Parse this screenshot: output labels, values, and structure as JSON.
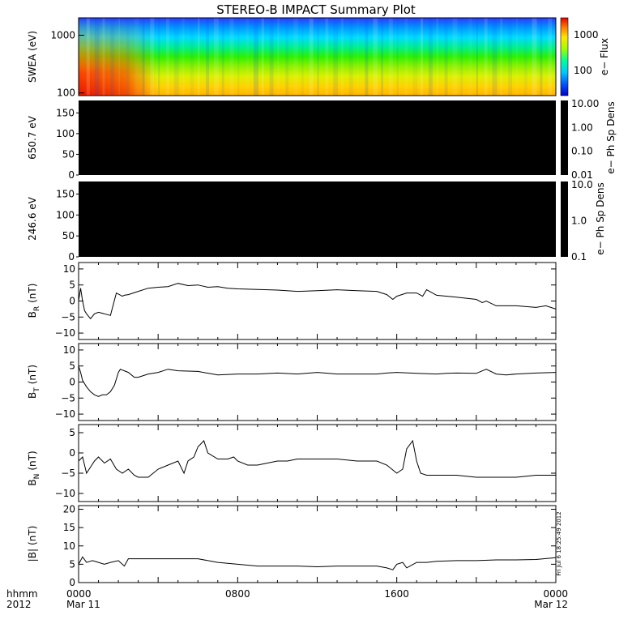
{
  "chart_data": {
    "type": "line",
    "title": "STEREO-B IMPACT Summary Plot",
    "x_axis": {
      "row1_label": "hhmm",
      "row2_label": "2012",
      "ticks": [
        {
          "t": 0,
          "label": "0000",
          "date": "Mar 11"
        },
        {
          "t": 8,
          "label": "0800",
          "date": ""
        },
        {
          "t": 16,
          "label": "1600",
          "date": ""
        },
        {
          "t": 24,
          "label": "0000",
          "date": "Mar 12"
        }
      ],
      "range_hours": [
        0,
        24
      ]
    },
    "timestamp_label": "Fri Jul 6 18:25:49 2012",
    "panels": [
      {
        "id": "swea",
        "type": "heatmap",
        "ylabel": "SWEA (eV)",
        "yscale": "log",
        "ylim": [
          90,
          2000
        ],
        "yticks": [
          {
            "v": 100,
            "label": "100"
          },
          {
            "v": 1000,
            "label": "1000"
          }
        ],
        "colorbar_label": "e− Flux",
        "colorbar_ticks": [
          {
            "v": 100,
            "label": "100"
          },
          {
            "v": 1000,
            "label": "1000"
          }
        ],
        "colorbar_range": [
          20,
          3000
        ]
      },
      {
        "id": "pad650",
        "type": "heatmap",
        "ylabel": "650.7 eV",
        "ylim": [
          0,
          180
        ],
        "yticks": [
          {
            "v": 0,
            "label": "0"
          },
          {
            "v": 50,
            "label": "50"
          },
          {
            "v": 100,
            "label": "100"
          },
          {
            "v": 150,
            "label": "150"
          }
        ],
        "colorbar_label": "e− Ph Sp Dens",
        "colorbar_ticks": [
          "10.00",
          "1.00",
          "0.10",
          "0.01"
        ],
        "fill": "#000000"
      },
      {
        "id": "pad246",
        "type": "heatmap",
        "ylabel": "246.6 eV",
        "ylim": [
          0,
          180
        ],
        "yticks": [
          {
            "v": 0,
            "label": "0"
          },
          {
            "v": 50,
            "label": "50"
          },
          {
            "v": 100,
            "label": "100"
          },
          {
            "v": 150,
            "label": "150"
          }
        ],
        "colorbar_label": "e− Ph Sp Dens",
        "colorbar_ticks": [
          "10.0",
          "1.0",
          "0.1"
        ],
        "fill": "#000000"
      },
      {
        "id": "br",
        "type": "line",
        "ylabel_main": "B",
        "ylabel_sub": "R",
        "ylabel_unit": "(nT)",
        "ylim": [
          -12,
          12
        ],
        "yticks": [
          {
            "v": -10,
            "label": "−10"
          },
          {
            "v": -5,
            "label": "−5"
          },
          {
            "v": 0,
            "label": "0"
          },
          {
            "v": 5,
            "label": "5"
          },
          {
            "v": 10,
            "label": "10"
          }
        ],
        "x": [
          0,
          0.1,
          0.2,
          0.3,
          0.4,
          0.6,
          0.8,
          1.0,
          1.3,
          1.6,
          1.9,
          2.2,
          2.3,
          2.5,
          3.0,
          3.5,
          4.0,
          4.5,
          5.0,
          5.5,
          6.0,
          6.5,
          7.0,
          7.5,
          8.0,
          9.0,
          10.0,
          11.0,
          12.0,
          13.0,
          14.0,
          15.0,
          15.5,
          15.8,
          16.0,
          16.5,
          17.0,
          17.3,
          17.5,
          18.0,
          19.0,
          20.0,
          20.3,
          20.5,
          21.0,
          22.0,
          23.0,
          23.5,
          24.0
        ],
        "y": [
          0,
          4,
          0,
          -3,
          -4,
          -5.5,
          -4,
          -3.5,
          -4,
          -4.5,
          2.5,
          1.5,
          1.8,
          2,
          3,
          4,
          4.3,
          4.5,
          5.5,
          4.8,
          5,
          4.3,
          4.5,
          4,
          3.8,
          3.6,
          3.4,
          3,
          3.2,
          3.5,
          3.2,
          3,
          2,
          0.5,
          1.5,
          2.5,
          2.5,
          1.5,
          3.5,
          1.8,
          1.2,
          0.5,
          -0.5,
          0,
          -1.5,
          -1.5,
          -2,
          -1.5,
          -2.5
        ]
      },
      {
        "id": "bt",
        "type": "line",
        "ylabel_main": "B",
        "ylabel_sub": "T",
        "ylabel_unit": "(nT)",
        "ylim": [
          -12,
          12
        ],
        "yticks": [
          {
            "v": -10,
            "label": "−10"
          },
          {
            "v": -5,
            "label": "−5"
          },
          {
            "v": 0,
            "label": "0"
          },
          {
            "v": 5,
            "label": "5"
          },
          {
            "v": 10,
            "label": "10"
          }
        ],
        "x": [
          0,
          0.1,
          0.2,
          0.4,
          0.6,
          0.8,
          1.0,
          1.2,
          1.4,
          1.6,
          1.8,
          2.0,
          2.1,
          2.3,
          2.5,
          2.8,
          3.0,
          3.5,
          4.0,
          4.5,
          5.0,
          6.0,
          7.0,
          8.0,
          9.0,
          10.0,
          11.0,
          12.0,
          13.0,
          14.0,
          15.0,
          15.5,
          16.0,
          17.0,
          18.0,
          18.5,
          19.0,
          20.0,
          20.5,
          21.0,
          21.5,
          22.0,
          23.0,
          24.0
        ],
        "y": [
          5,
          3,
          0.5,
          -1.5,
          -3,
          -4,
          -4.5,
          -4,
          -4,
          -3,
          -1,
          3,
          4,
          3.5,
          3,
          1.5,
          1.5,
          2.5,
          3,
          4,
          3.5,
          3.3,
          2.2,
          2.5,
          2.5,
          2.8,
          2.5,
          3,
          2.5,
          2.5,
          2.5,
          2.8,
          3,
          2.7,
          2.5,
          2.7,
          2.8,
          2.7,
          4,
          2.5,
          2.2,
          2.5,
          2.8,
          3
        ]
      },
      {
        "id": "bn",
        "type": "line",
        "ylabel_main": "B",
        "ylabel_sub": "N",
        "ylabel_unit": "(nT)",
        "ylim": [
          -12,
          7
        ],
        "yticks": [
          {
            "v": -10,
            "label": "−10"
          },
          {
            "v": -5,
            "label": "−5"
          },
          {
            "v": 0,
            "label": "0"
          },
          {
            "v": 5,
            "label": "5"
          }
        ],
        "x": [
          0,
          0.2,
          0.4,
          0.6,
          0.8,
          1.0,
          1.3,
          1.6,
          1.9,
          2.2,
          2.5,
          2.8,
          3.0,
          3.5,
          4.0,
          4.5,
          5.0,
          5.3,
          5.5,
          5.8,
          6.0,
          6.3,
          6.5,
          7.0,
          7.5,
          7.8,
          8.0,
          8.5,
          9.0,
          9.5,
          10.0,
          10.5,
          11.0,
          12.0,
          13.0,
          14.0,
          15.0,
          15.5,
          16.0,
          16.3,
          16.5,
          16.8,
          17.0,
          17.2,
          17.5,
          18.0,
          19.0,
          20.0,
          21.0,
          22.0,
          23.0,
          24.0
        ],
        "y": [
          -2,
          -1,
          -5,
          -3.5,
          -2,
          -1,
          -2.5,
          -1.5,
          -4,
          -5,
          -4,
          -5.5,
          -6,
          -6,
          -4,
          -3,
          -2,
          -5,
          -2,
          -1,
          1.5,
          3,
          0,
          -1.5,
          -1.5,
          -1,
          -2,
          -3,
          -3,
          -2.5,
          -2,
          -2,
          -1.5,
          -1.5,
          -1.5,
          -2,
          -2,
          -3,
          -5,
          -4,
          1,
          3,
          -2,
          -5,
          -5.5,
          -5.5,
          -5.5,
          -6,
          -6,
          -6,
          -5.5,
          -5.5
        ]
      },
      {
        "id": "bmag",
        "type": "line",
        "ylabel_main": "|B|",
        "ylabel_unit": "(nT)",
        "ylim": [
          0,
          21
        ],
        "yticks": [
          {
            "v": 0,
            "label": "0"
          },
          {
            "v": 5,
            "label": "5"
          },
          {
            "v": 10,
            "label": "10"
          },
          {
            "v": 15,
            "label": "15"
          },
          {
            "v": 20,
            "label": "20"
          }
        ],
        "x": [
          0,
          0.2,
          0.4,
          0.7,
          1.0,
          1.3,
          1.6,
          2.0,
          2.3,
          2.5,
          3.0,
          4.0,
          5.0,
          6.0,
          7.0,
          8.0,
          9.0,
          10.0,
          11.0,
          12.0,
          13.0,
          14.0,
          15.0,
          15.5,
          15.8,
          16.0,
          16.3,
          16.5,
          17.0,
          17.3,
          17.5,
          18.0,
          19.0,
          20.0,
          21.0,
          22.0,
          23.0,
          24.0
        ],
        "y": [
          5,
          7,
          5.5,
          6,
          5.5,
          5,
          5.5,
          6,
          4.5,
          6.5,
          6.5,
          6.5,
          6.5,
          6.5,
          5.5,
          5,
          4.5,
          4.5,
          4.5,
          4.3,
          4.5,
          4.5,
          4.5,
          4,
          3.5,
          5,
          5.5,
          4,
          5.5,
          5.5,
          5.5,
          5.8,
          6,
          6,
          6.2,
          6.2,
          6.3,
          6.8
        ]
      }
    ]
  }
}
